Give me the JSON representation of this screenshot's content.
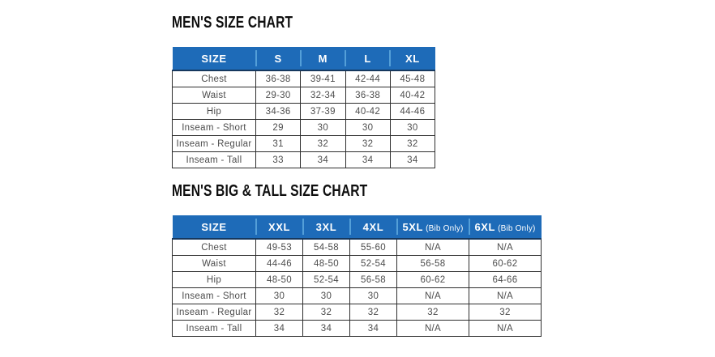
{
  "colors": {
    "header_bg": "#1e6bb8",
    "header_text": "#ffffff",
    "header_divider": "#549fd8",
    "header_bottom": "#16385e",
    "table_border": "#2e2e2e",
    "body_text": "#4d4d4d",
    "title_text": "#0e0e0e"
  },
  "tables": [
    {
      "title": "MEN'S SIZE CHART",
      "size_label": "SIZE",
      "columns": [
        "S",
        "M",
        "L",
        "XL"
      ],
      "column_notes": [
        "",
        "",
        "",
        ""
      ],
      "rows": [
        {
          "label": "Chest",
          "values": [
            "36-38",
            "39-41",
            "42-44",
            "45-48"
          ]
        },
        {
          "label": "Waist",
          "values": [
            "29-30",
            "32-34",
            "36-38",
            "40-42"
          ]
        },
        {
          "label": "Hip",
          "values": [
            "34-36",
            "37-39",
            "40-42",
            "44-46"
          ]
        },
        {
          "label": "Inseam - Short",
          "values": [
            "29",
            "30",
            "30",
            "30"
          ]
        },
        {
          "label": "Inseam - Regular",
          "values": [
            "31",
            "32",
            "32",
            "32"
          ]
        },
        {
          "label": "Inseam - Tall",
          "values": [
            "33",
            "34",
            "34",
            "34"
          ]
        }
      ]
    },
    {
      "title": "MEN'S BIG & TALL SIZE CHART",
      "size_label": "SIZE",
      "columns": [
        "XXL",
        "3XL",
        "4XL",
        "5XL",
        "6XL"
      ],
      "column_notes": [
        "",
        "",
        "",
        "(Bib Only)",
        "(Bib Only)"
      ],
      "rows": [
        {
          "label": "Chest",
          "values": [
            "49-53",
            "54-58",
            "55-60",
            "N/A",
            "N/A"
          ]
        },
        {
          "label": "Waist",
          "values": [
            "44-46",
            "48-50",
            "52-54",
            "56-58",
            "60-62"
          ]
        },
        {
          "label": "Hip",
          "values": [
            "48-50",
            "52-54",
            "56-58",
            "60-62",
            "64-66"
          ]
        },
        {
          "label": "Inseam - Short",
          "values": [
            "30",
            "30",
            "30",
            "N/A",
            "N/A"
          ]
        },
        {
          "label": "Inseam - Regular",
          "values": [
            "32",
            "32",
            "32",
            "32",
            "32"
          ]
        },
        {
          "label": "Inseam - Tall",
          "values": [
            "34",
            "34",
            "34",
            "N/A",
            "N/A"
          ]
        }
      ]
    }
  ]
}
